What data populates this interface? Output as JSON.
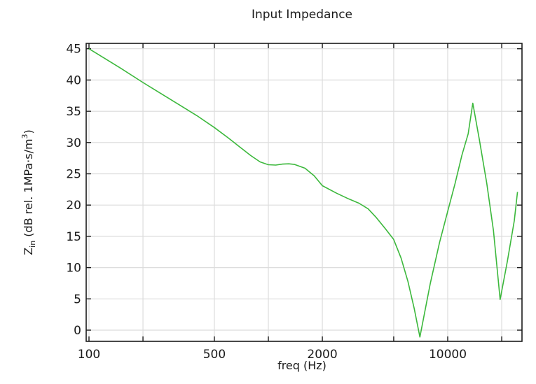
{
  "chart_data": {
    "type": "line",
    "title": "Input Impedance",
    "xlabel": "freq (Hz)",
    "ylabel_main": "Z",
    "ylabel_sub": "in",
    "ylabel_rest": " (dB rel. 1MPa·s/m",
    "ylabel_sup": "3",
    "ylabel_end": ")",
    "xscale": "log",
    "xlim": [
      100,
      25000
    ],
    "ylim": [
      -1.8,
      45.8
    ],
    "grid": true,
    "legend": null,
    "x_ticks": [
      100,
      200,
      500,
      1000,
      2000,
      5000,
      10000,
      20000
    ],
    "x_tick_labels": [
      "100",
      "",
      "500",
      "",
      "2000",
      "",
      "10000",
      ""
    ],
    "y_ticks": [
      0,
      5,
      10,
      15,
      20,
      25,
      30,
      35,
      40,
      45
    ],
    "y_tick_labels": [
      "0",
      "5",
      "10",
      "15",
      "20",
      "25",
      "30",
      "35",
      "40",
      "45"
    ],
    "line_color": "#3cb83c",
    "series": [
      {
        "name": "Zin",
        "x": [
          100,
          150,
          200,
          300,
          400,
          500,
          600,
          700,
          800,
          900,
          1000,
          1100,
          1200,
          1300,
          1400,
          1600,
          1800,
          2000,
          2400,
          2800,
          3200,
          3600,
          4000,
          4500,
          5000,
          5500,
          6000,
          6500,
          7000,
          8000,
          9000,
          10000,
          11000,
          12000,
          13000,
          13800,
          15000,
          16500,
          18000,
          19600,
          21500,
          23500,
          24500
        ],
        "values": [
          45.0,
          41.9,
          39.6,
          36.5,
          34.3,
          32.4,
          30.7,
          29.2,
          27.9,
          26.9,
          26.45,
          26.4,
          26.55,
          26.6,
          26.5,
          25.9,
          24.7,
          23.1,
          21.9,
          21.0,
          20.3,
          19.4,
          18.0,
          16.2,
          14.5,
          11.5,
          7.8,
          3.5,
          -1.1,
          7.5,
          14.0,
          19.0,
          23.5,
          28.0,
          31.4,
          36.3,
          30.5,
          23.5,
          15.9,
          4.9,
          11.0,
          17.5,
          22.1
        ]
      }
    ]
  }
}
